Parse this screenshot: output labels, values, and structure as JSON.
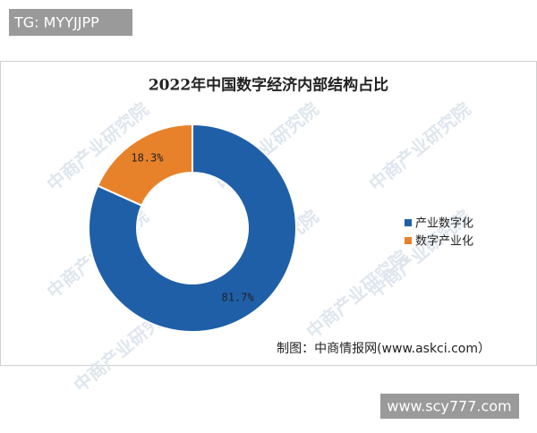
{
  "tag": "TG: MYYJJPP",
  "footer_tag": "www.scy777.com",
  "watermark": "中商产业研究院",
  "chart_data": {
    "type": "donut",
    "title": "2022年中国数字经济内部结构占比",
    "categories": [
      "产业数字化",
      "数字产业化"
    ],
    "values": [
      81.7,
      18.3
    ],
    "value_labels": [
      "81.7%",
      "18.3%"
    ],
    "colors": [
      "#1f5fa8",
      "#e8822a"
    ],
    "legend": "right",
    "source": "制图：中商情报网(www.askci.com）"
  }
}
